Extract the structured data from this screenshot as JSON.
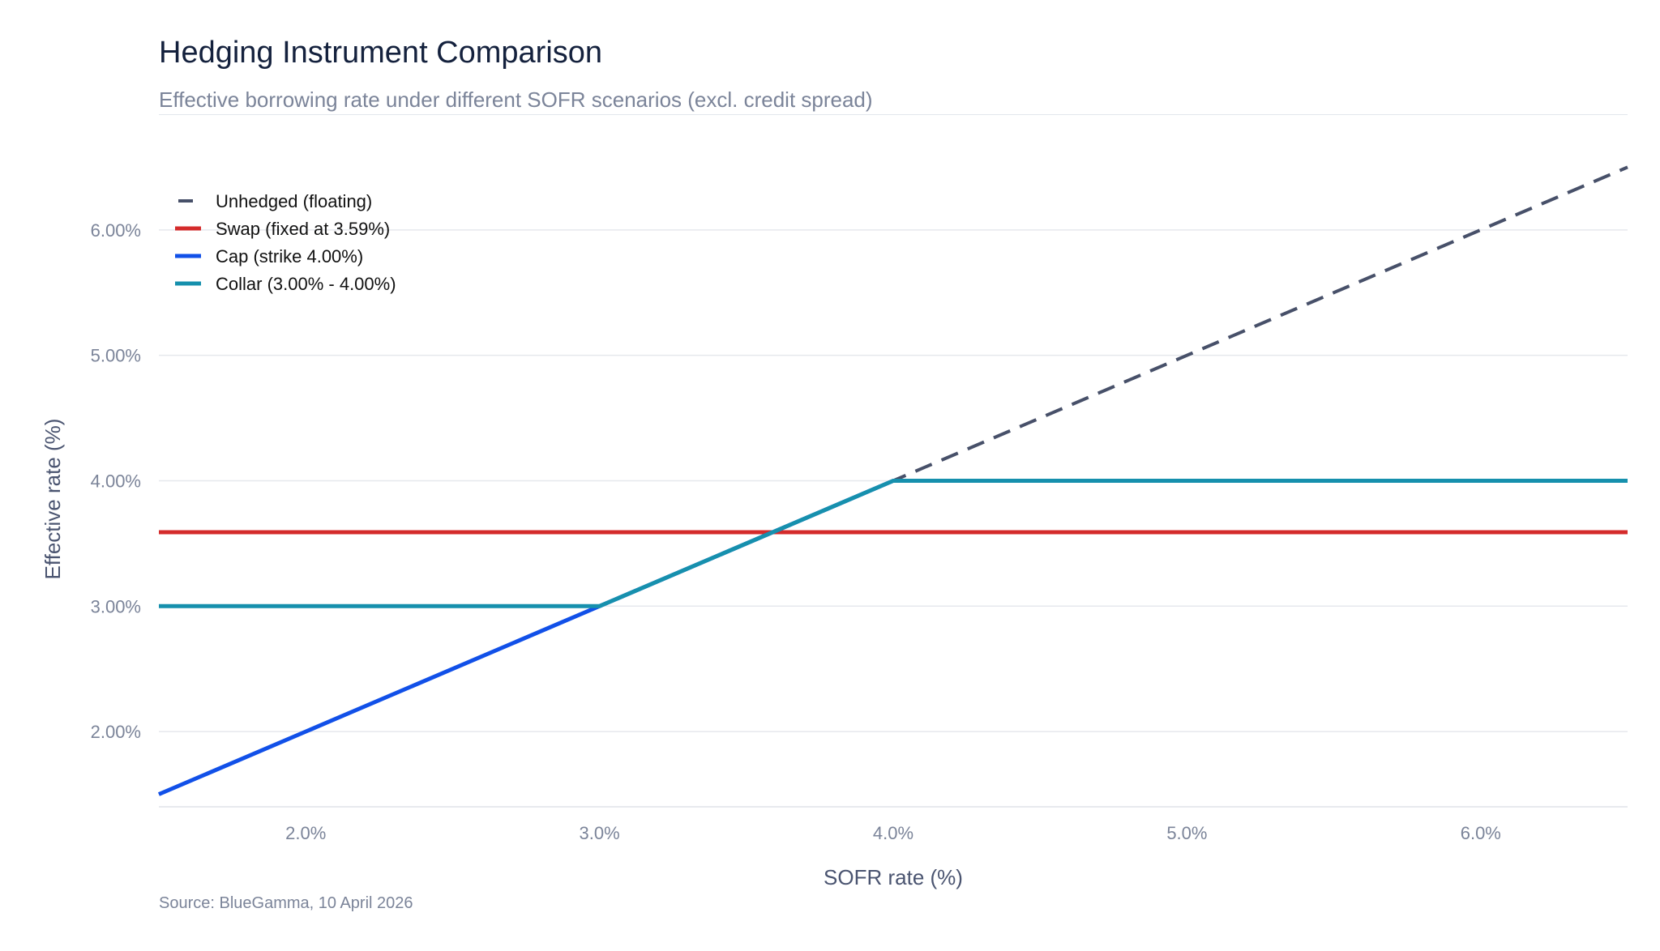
{
  "header": {
    "title": "Hedging Instrument Comparison",
    "subtitle": "Effective borrowing rate under different SOFR scenarios (excl. credit spread)"
  },
  "footer": {
    "source": "Source: BlueGamma, 10 April 2026"
  },
  "chart_data": {
    "type": "line",
    "title": "Hedging Instrument Comparison",
    "subtitle": "Effective borrowing rate under different SOFR scenarios (excl. credit spread)",
    "xlabel": "SOFR rate (%)",
    "ylabel": "Effective rate (%)",
    "xlim": [
      1.5,
      6.5
    ],
    "ylim": [
      1.4,
      6.8
    ],
    "x_ticks": [
      2.0,
      3.0,
      4.0,
      5.0,
      6.0
    ],
    "x_tick_labels": [
      "2.0%",
      "3.0%",
      "4.0%",
      "5.0%",
      "6.0%"
    ],
    "y_ticks": [
      2.0,
      3.0,
      4.0,
      5.0,
      6.0
    ],
    "y_tick_labels": [
      "2.00%",
      "3.00%",
      "4.00%",
      "5.00%",
      "6.00%"
    ],
    "grid": "horizontal",
    "legend_position": "top-left",
    "series": [
      {
        "name": "Unhedged (floating)",
        "color": "#475069",
        "style": "dashed",
        "x": [
          1.5,
          6.5
        ],
        "y": [
          1.5,
          6.5
        ]
      },
      {
        "name": "Swap (fixed at 3.59%)",
        "color": "#d42b2b",
        "style": "solid",
        "x": [
          1.5,
          6.5
        ],
        "y": [
          3.59,
          3.59
        ]
      },
      {
        "name": "Cap (strike 4.00%)",
        "color": "#1150e8",
        "style": "solid",
        "x": [
          1.5,
          4.0,
          6.5
        ],
        "y": [
          1.5,
          4.0,
          4.0
        ]
      },
      {
        "name": "Collar (3.00% - 4.00%)",
        "color": "#1690ad",
        "style": "solid",
        "x": [
          1.5,
          3.0,
          4.0,
          6.5
        ],
        "y": [
          3.0,
          3.0,
          4.0,
          4.0
        ]
      }
    ],
    "source": "Source: BlueGamma, 10 April 2026"
  }
}
